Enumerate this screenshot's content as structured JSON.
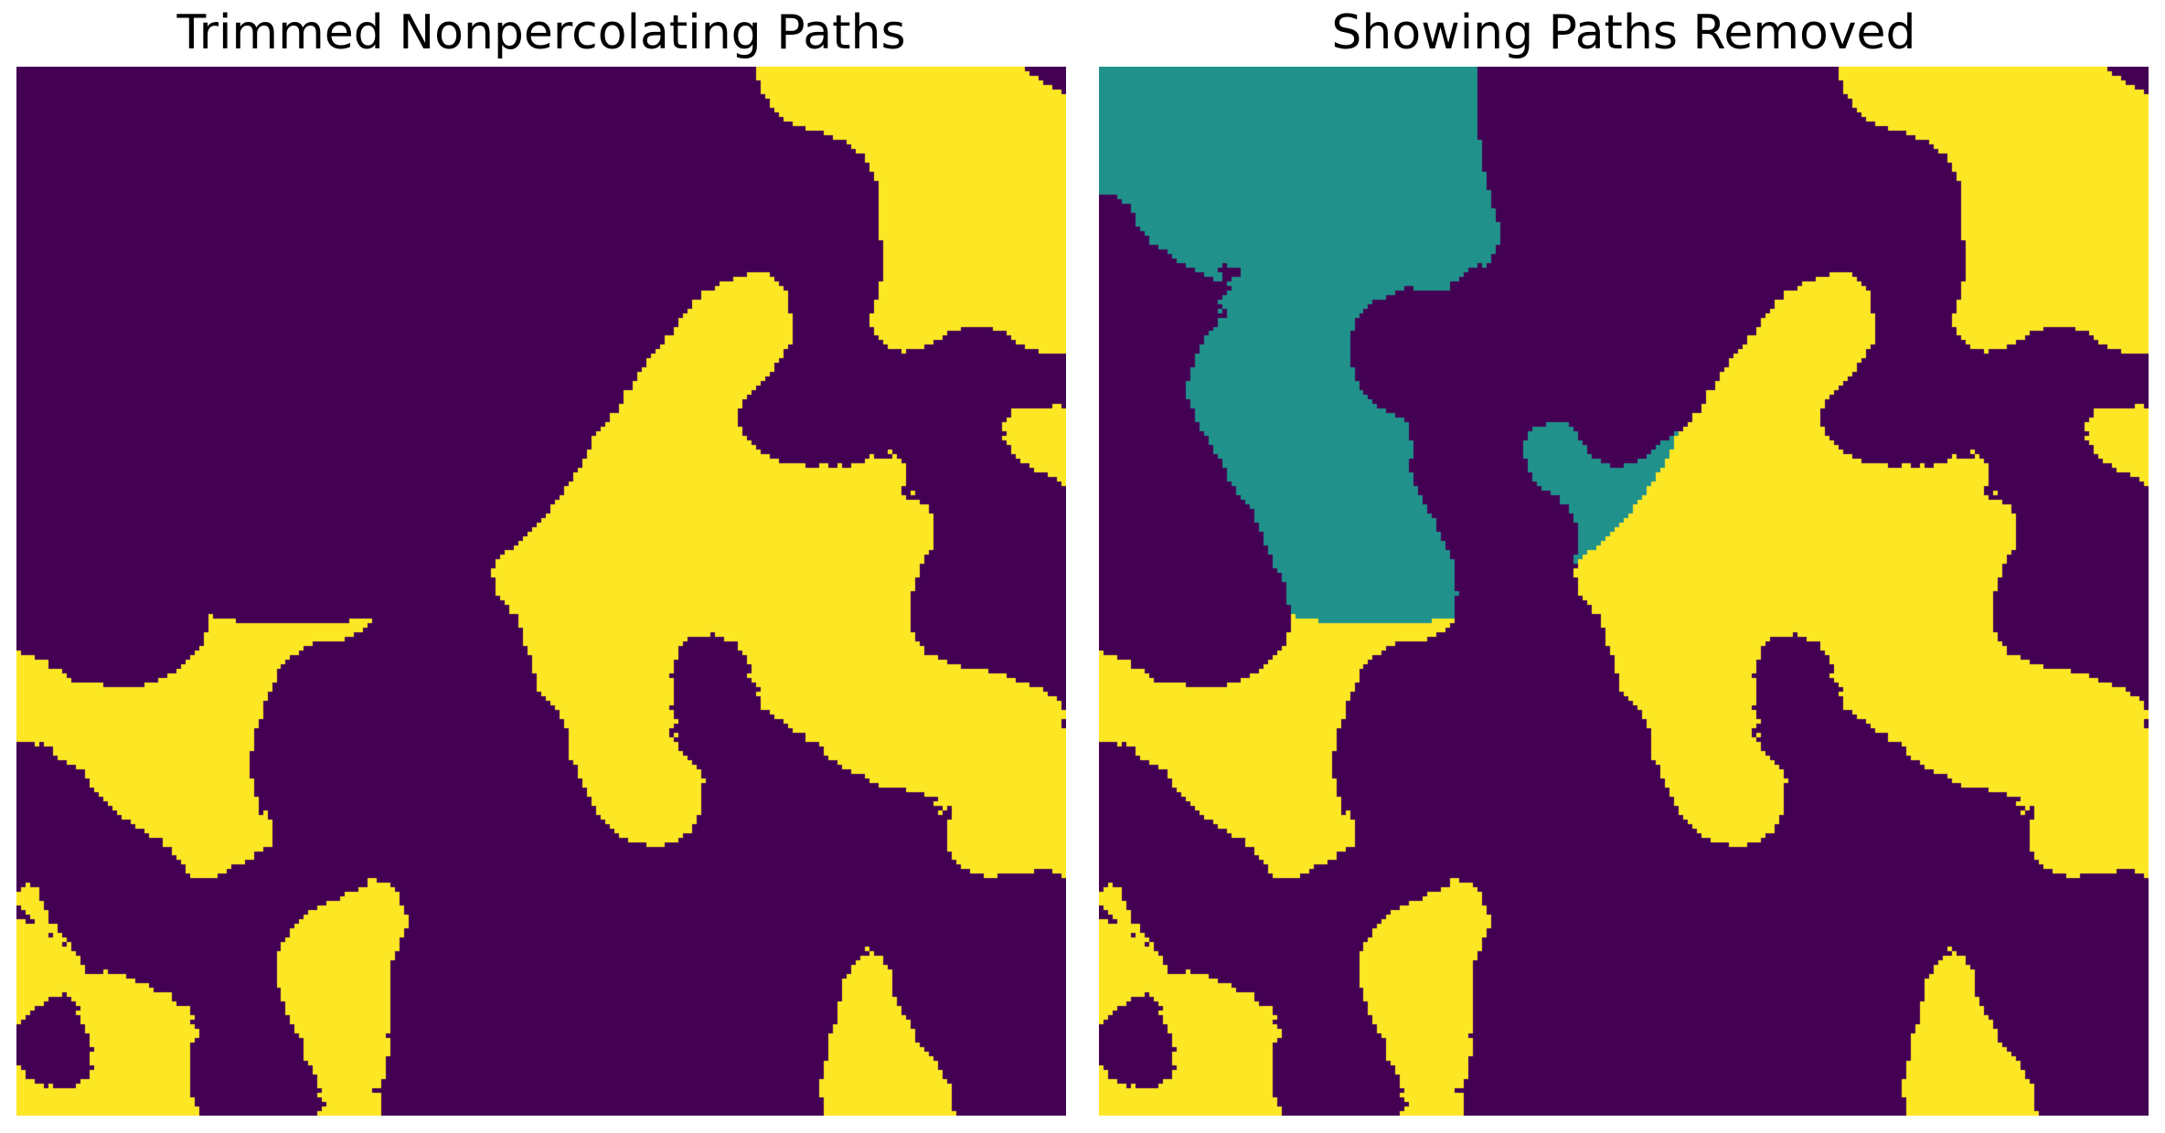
{
  "figure": {
    "left_panel": {
      "title": "Trimmed Nonpercolating Paths"
    },
    "right_panel": {
      "title": "Showing Paths Removed"
    }
  },
  "colors": {
    "background_phase": "#440154",
    "percolating_phase": "#fde725",
    "removed_paths": "#21918c",
    "figure_background": "#ffffff"
  }
}
